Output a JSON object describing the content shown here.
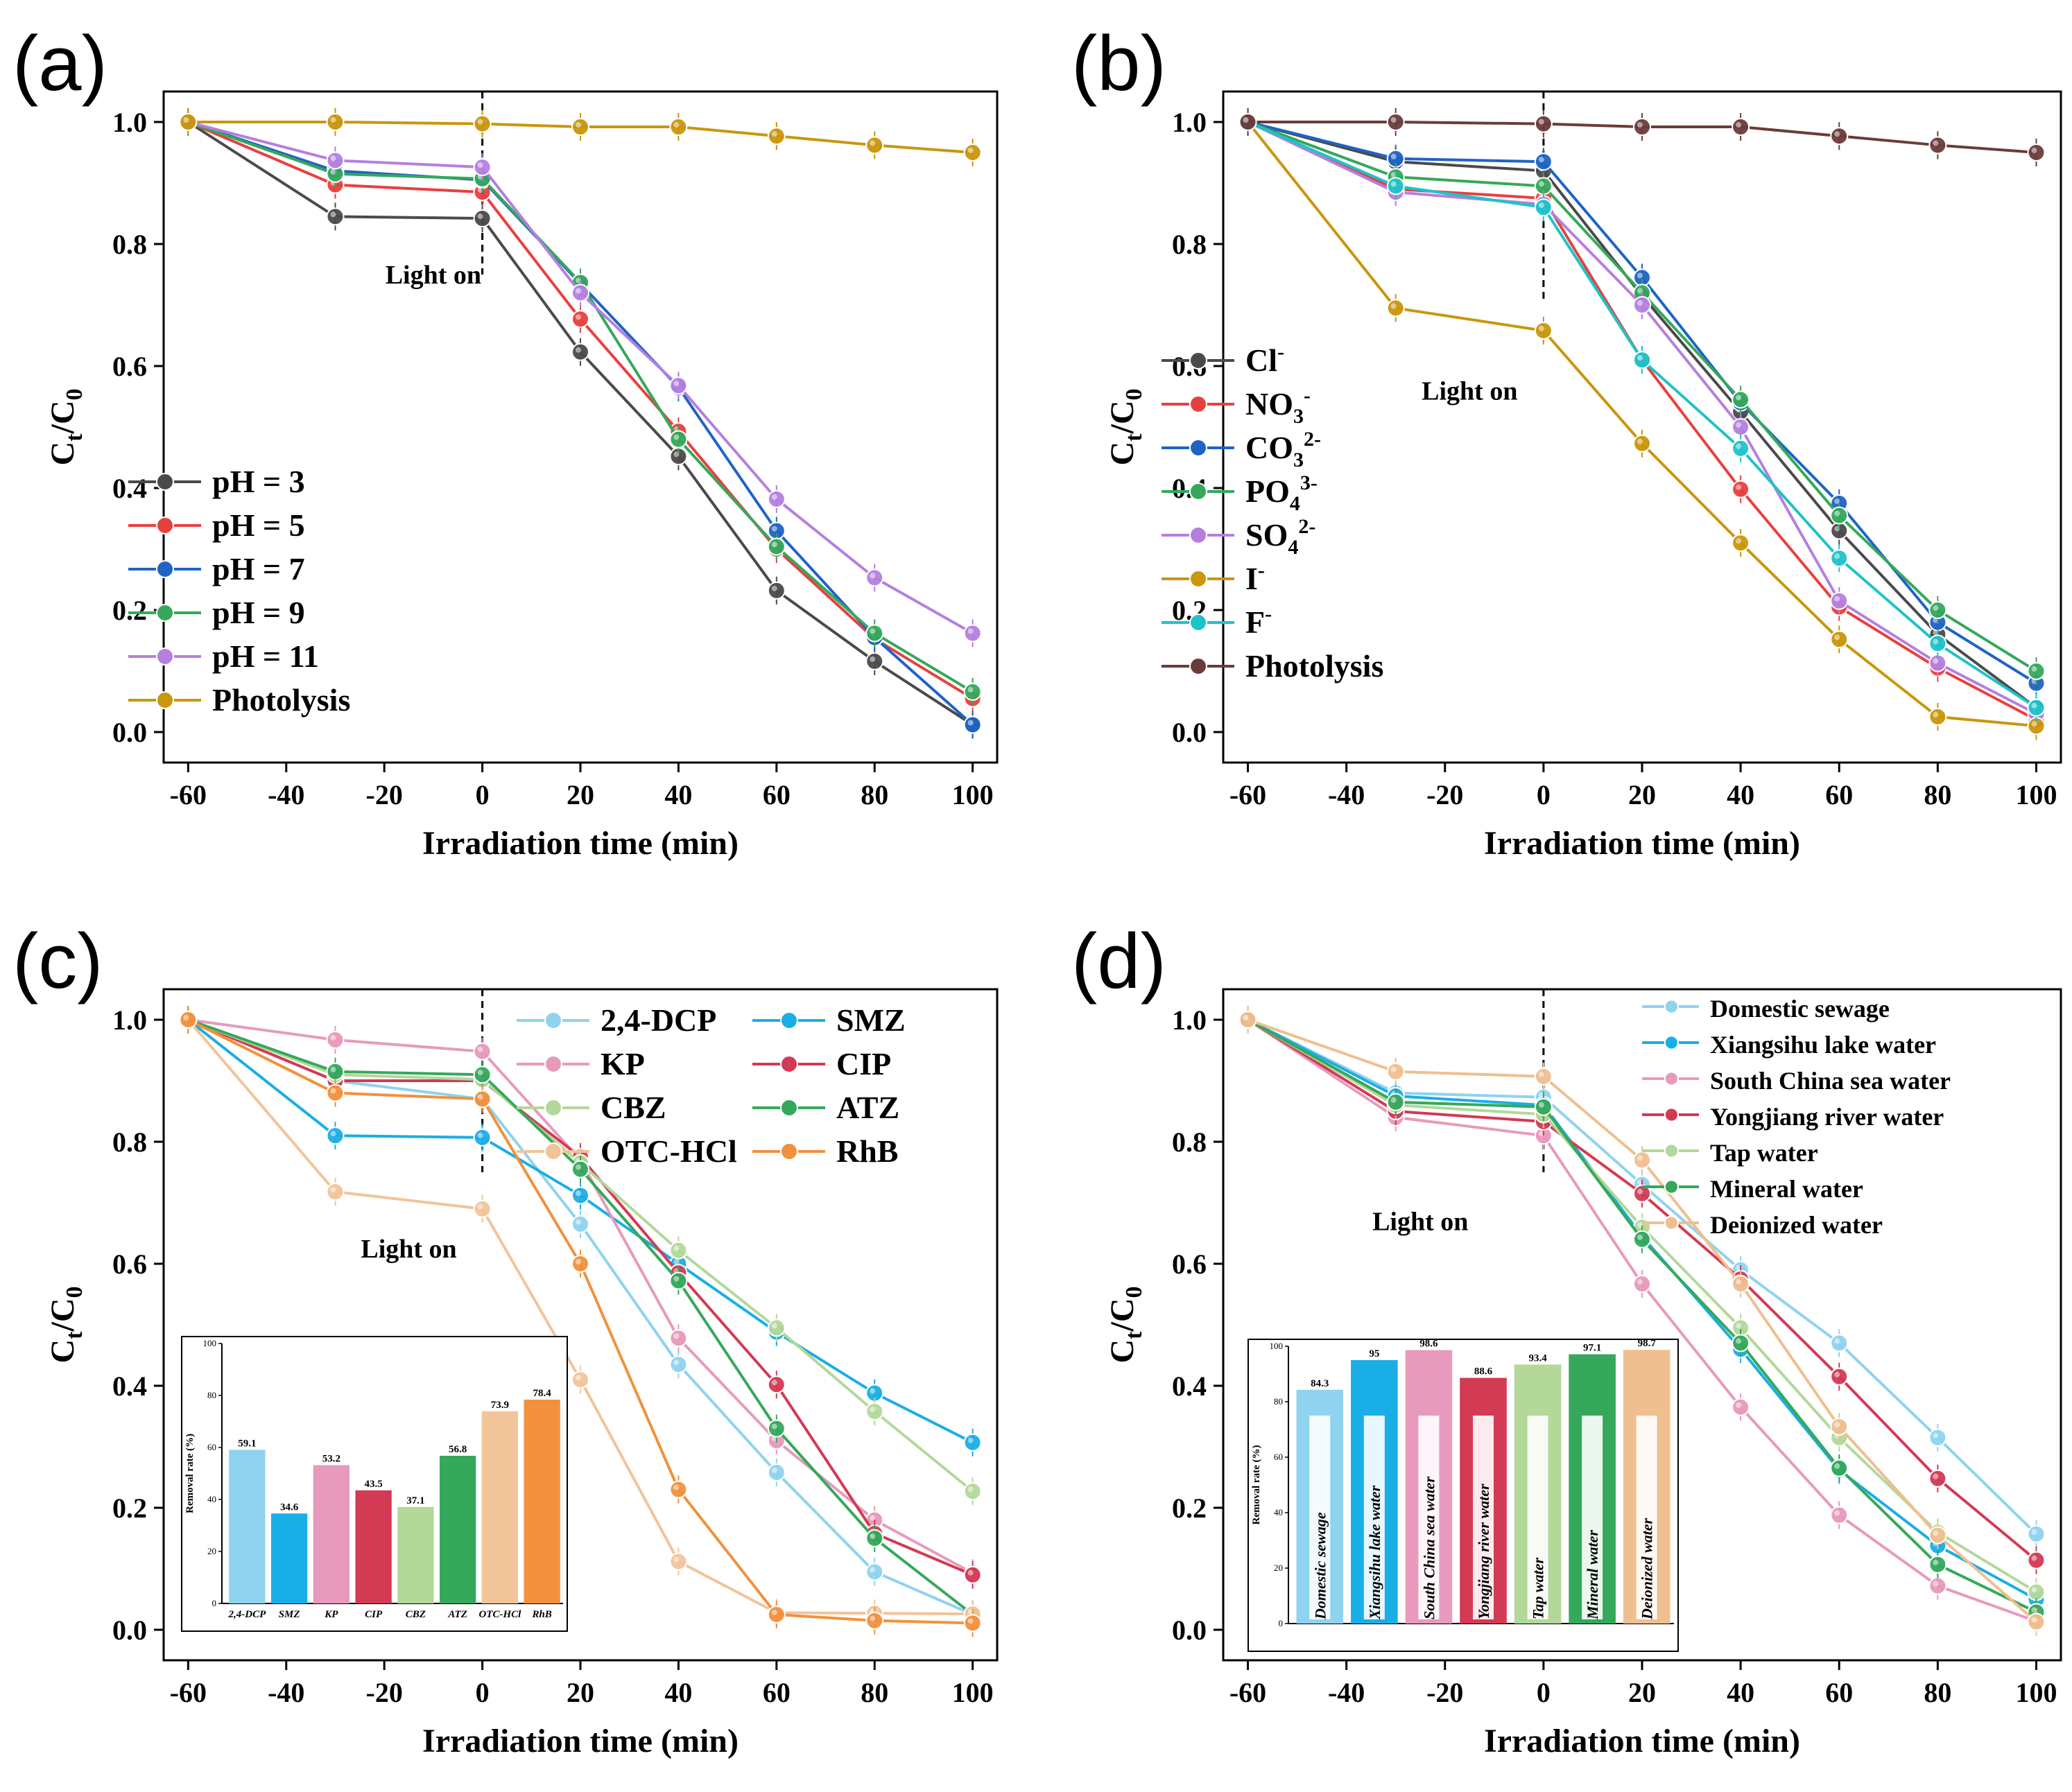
{
  "colors": {
    "dark_gray": "#4a4a4a",
    "red": "#e8403f",
    "blue": "#1f63c6",
    "green": "#35a85b",
    "purple": "#b57fe0",
    "gold": "#c9960c",
    "cyan": "#1ec3c9",
    "brown": "#6b3b3b",
    "light_blue": "#8fd3ef",
    "sky": "#1aaee6",
    "pink": "#e79abc",
    "crimson": "#d33a54",
    "light_green": "#b3d89a",
    "peach": "#f2c49a",
    "orange": "#f1913d",
    "tan": "#efbf8f"
  },
  "chart_data": [
    {
      "id": "a",
      "panel_label": "(a)",
      "type": "line",
      "xlabel": "Irradiation time (min)",
      "ylabel_main": "C",
      "ylabel_sub1": "t",
      "ylabel_sep": "/C",
      "ylabel_sub2": "0",
      "xlim": [
        -65,
        105
      ],
      "ylim": [
        -0.05,
        1.05
      ],
      "xticks": [
        -60,
        -40,
        -20,
        0,
        20,
        40,
        60,
        80,
        100
      ],
      "yticks": [
        0.0,
        0.2,
        0.4,
        0.6,
        0.8,
        1.0
      ],
      "xtick_labels": [
        "-60",
        "-40",
        "-20",
        "0",
        "20",
        "40",
        "60",
        "80",
        "100"
      ],
      "ytick_labels": [
        "0.0",
        "0.2",
        "0.4",
        "0.6",
        "0.8",
        "1.0"
      ],
      "x": [
        -60,
        -30,
        0,
        20,
        40,
        60,
        80,
        100
      ],
      "annotation": {
        "text": "Light on",
        "x": 0
      },
      "legend_position": "left-middle",
      "series": [
        {
          "name": "pH = 3",
          "color": "dark_gray",
          "values": [
            1.0,
            0.845,
            0.842,
            0.623,
            0.452,
            0.232,
            0.116,
            0.012
          ]
        },
        {
          "name": "pH = 5",
          "color": "red",
          "values": [
            1.0,
            0.897,
            0.885,
            0.677,
            0.493,
            0.3,
            0.153,
            0.055
          ]
        },
        {
          "name": "pH = 7",
          "color": "blue",
          "values": [
            1.0,
            0.92,
            0.905,
            0.735,
            0.565,
            0.33,
            0.155,
            0.012
          ]
        },
        {
          "name": "pH = 9",
          "color": "green",
          "values": [
            1.0,
            0.915,
            0.907,
            0.737,
            0.48,
            0.304,
            0.162,
            0.066
          ]
        },
        {
          "name": "pH = 11",
          "color": "purple",
          "values": [
            1.0,
            0.937,
            0.926,
            0.72,
            0.568,
            0.382,
            0.253,
            0.162
          ]
        },
        {
          "name": "Photolysis",
          "color": "gold",
          "values": [
            1.0,
            1.0,
            0.997,
            0.992,
            0.992,
            0.977,
            0.962,
            0.95
          ]
        }
      ]
    },
    {
      "id": "b",
      "panel_label": "(b)",
      "type": "line",
      "xlabel": "Irradiation time (min)",
      "ylabel_main": "C",
      "ylabel_sub1": "t",
      "ylabel_sep": "/C",
      "ylabel_sub2": "0",
      "xlim": [
        -65,
        105
      ],
      "ylim": [
        -0.05,
        1.05
      ],
      "xticks": [
        -60,
        -40,
        -20,
        0,
        20,
        40,
        60,
        80,
        100
      ],
      "yticks": [
        0.0,
        0.2,
        0.4,
        0.6,
        0.8,
        1.0
      ],
      "xtick_labels": [
        "-60",
        "-40",
        "-20",
        "0",
        "20",
        "40",
        "60",
        "80",
        "100"
      ],
      "ytick_labels": [
        "0.0",
        "0.2",
        "0.4",
        "0.6",
        "0.8",
        "1.0"
      ],
      "x": [
        -60,
        -30,
        0,
        20,
        40,
        60,
        80,
        100
      ],
      "annotation": {
        "text": "Light on",
        "x": 0
      },
      "legend_position": "left-bottom",
      "series": [
        {
          "name": "Cl",
          "sup": "-",
          "color": "dark_gray",
          "values": [
            1.0,
            0.935,
            0.92,
            0.715,
            0.525,
            0.33,
            0.16,
            0.04
          ]
        },
        {
          "name": "NO",
          "sub": "3",
          "sup": "-",
          "color": "red",
          "values": [
            1.0,
            0.89,
            0.875,
            0.61,
            0.398,
            0.205,
            0.105,
            0.02
          ]
        },
        {
          "name": "CO",
          "sub": "3",
          "sup": "2-",
          "color": "blue",
          "values": [
            1.0,
            0.94,
            0.935,
            0.745,
            0.54,
            0.375,
            0.18,
            0.08
          ]
        },
        {
          "name": "PO",
          "sub": "4",
          "sup": "3-",
          "color": "green",
          "values": [
            1.0,
            0.91,
            0.895,
            0.72,
            0.545,
            0.355,
            0.2,
            0.1
          ]
        },
        {
          "name": "SO",
          "sub": "4",
          "sup": "2-",
          "color": "purple",
          "values": [
            1.0,
            0.885,
            0.865,
            0.7,
            0.5,
            0.215,
            0.113,
            0.03
          ]
        },
        {
          "name": "I",
          "sup": "-",
          "color": "gold",
          "values": [
            1.0,
            0.695,
            0.658,
            0.473,
            0.31,
            0.152,
            0.025,
            0.01
          ]
        },
        {
          "name": "F",
          "sup": "-",
          "color": "cyan",
          "values": [
            1.0,
            0.895,
            0.86,
            0.61,
            0.465,
            0.285,
            0.145,
            0.04
          ]
        },
        {
          "name": "Photolysis",
          "color": "brown",
          "values": [
            1.0,
            1.0,
            0.997,
            0.992,
            0.992,
            0.977,
            0.962,
            0.95
          ]
        }
      ]
    },
    {
      "id": "c",
      "panel_label": "(c)",
      "type": "line",
      "xlabel": "Irradiation time (min)",
      "ylabel_main": "C",
      "ylabel_sub1": "t",
      "ylabel_sep": "/C",
      "ylabel_sub2": "0",
      "xlim": [
        -65,
        105
      ],
      "ylim": [
        -0.05,
        1.05
      ],
      "xticks": [
        -60,
        -40,
        -20,
        0,
        20,
        40,
        60,
        80,
        100
      ],
      "yticks": [
        0.0,
        0.2,
        0.4,
        0.6,
        0.8,
        1.0
      ],
      "xtick_labels": [
        "-60",
        "-40",
        "-20",
        "0",
        "20",
        "40",
        "60",
        "80",
        "100"
      ],
      "ytick_labels": [
        "0.0",
        "0.2",
        "0.4",
        "0.6",
        "0.8",
        "1.0"
      ],
      "x": [
        -60,
        -30,
        0,
        20,
        40,
        60,
        80,
        100
      ],
      "annotation": {
        "text": "Light on",
        "x": 0
      },
      "legend_position": "top-right",
      "series": [
        {
          "name": "2,4-DCP",
          "color": "light_blue",
          "values": [
            1.0,
            0.9,
            0.87,
            0.665,
            0.435,
            0.258,
            0.095,
            0.025
          ]
        },
        {
          "name": "SMZ",
          "color": "sky",
          "values": [
            1.0,
            0.81,
            0.807,
            0.712,
            0.6,
            0.488,
            0.388,
            0.307
          ]
        },
        {
          "name": "KP",
          "color": "pink",
          "values": [
            1.0,
            0.967,
            0.948,
            0.77,
            0.478,
            0.31,
            0.18,
            0.093
          ]
        },
        {
          "name": "CIP",
          "color": "crimson",
          "values": [
            1.0,
            0.9,
            0.9,
            0.775,
            0.585,
            0.402,
            0.158,
            0.09
          ]
        },
        {
          "name": "CBZ",
          "color": "light_green",
          "values": [
            1.0,
            0.91,
            0.902,
            0.765,
            0.622,
            0.495,
            0.358,
            0.227
          ]
        },
        {
          "name": "ATZ",
          "color": "green",
          "values": [
            1.0,
            0.915,
            0.91,
            0.755,
            0.572,
            0.33,
            0.15,
            0.025
          ]
        },
        {
          "name": "OTC-HCl",
          "color": "peach",
          "values": [
            1.0,
            0.718,
            0.69,
            0.41,
            0.112,
            0.028,
            0.027,
            0.026
          ]
        },
        {
          "name": "RhB",
          "color": "orange",
          "values": [
            1.0,
            0.88,
            0.87,
            0.6,
            0.23,
            0.025,
            0.015,
            0.011
          ]
        }
      ],
      "inset": {
        "type": "bar",
        "ylabel": "Removal rate (%)",
        "ylim": [
          0,
          100
        ],
        "yticks": [
          0,
          20,
          40,
          60,
          80,
          100
        ],
        "ytick_labels": [
          "0",
          "20",
          "40",
          "60",
          "80",
          "100"
        ],
        "categories": [
          "2,4-DCP",
          "SMZ",
          "KP",
          "CIP",
          "CBZ",
          "ATZ",
          "OTC-HCl",
          "RhB"
        ],
        "values": [
          59.1,
          34.6,
          53.2,
          43.5,
          37.1,
          56.8,
          73.9,
          78.4
        ],
        "value_labels": [
          "59.1",
          "34.6",
          "53.2",
          "43.5",
          "37.1",
          "56.8",
          "73.9",
          "78.4"
        ],
        "colors": [
          "light_blue",
          "sky",
          "pink",
          "crimson",
          "light_green",
          "green",
          "peach",
          "orange"
        ]
      }
    },
    {
      "id": "d",
      "panel_label": "(d)",
      "type": "line",
      "xlabel": "Irradiation time (min)",
      "ylabel_main": "C",
      "ylabel_sub1": "t",
      "ylabel_sep": "/C",
      "ylabel_sub2": "0",
      "xlim": [
        -65,
        105
      ],
      "ylim": [
        -0.05,
        1.05
      ],
      "xticks": [
        -60,
        -40,
        -20,
        0,
        20,
        40,
        60,
        80,
        100
      ],
      "yticks": [
        0.0,
        0.2,
        0.4,
        0.6,
        0.8,
        1.0
      ],
      "xtick_labels": [
        "-60",
        "-40",
        "-20",
        "0",
        "20",
        "40",
        "60",
        "80",
        "100"
      ],
      "ytick_labels": [
        "0.0",
        "0.2",
        "0.4",
        "0.6",
        "0.8",
        "1.0"
      ],
      "x": [
        -60,
        -30,
        0,
        20,
        40,
        60,
        80,
        100
      ],
      "annotation": {
        "text": "Light on",
        "x": 0
      },
      "legend_position": "top-right",
      "series": [
        {
          "name": "Domestic sewage",
          "color": "light_blue",
          "values": [
            1.0,
            0.88,
            0.873,
            0.73,
            0.59,
            0.47,
            0.315,
            0.157
          ]
        },
        {
          "name": "Xiangsihu lake water",
          "color": "sky",
          "values": [
            1.0,
            0.875,
            0.86,
            0.645,
            0.46,
            0.262,
            0.138,
            0.05
          ]
        },
        {
          "name": "South China sea water",
          "color": "pink",
          "values": [
            1.0,
            0.84,
            0.81,
            0.567,
            0.365,
            0.188,
            0.072,
            0.014
          ]
        },
        {
          "name": "Yongjiang river water",
          "color": "crimson",
          "values": [
            1.0,
            0.85,
            0.833,
            0.715,
            0.575,
            0.415,
            0.248,
            0.114
          ]
        },
        {
          "name": "Tap water",
          "color": "light_green",
          "values": [
            1.0,
            0.86,
            0.845,
            0.66,
            0.495,
            0.315,
            0.16,
            0.062
          ]
        },
        {
          "name": "Mineral water",
          "color": "green",
          "values": [
            1.0,
            0.865,
            0.857,
            0.64,
            0.47,
            0.265,
            0.107,
            0.029
          ]
        },
        {
          "name": "Deionized water",
          "color": "tan",
          "values": [
            1.0,
            0.915,
            0.907,
            0.77,
            0.567,
            0.333,
            0.155,
            0.013
          ]
        }
      ],
      "inset": {
        "type": "bar",
        "ylabel": "Removal rate (%)",
        "ylim": [
          0,
          100
        ],
        "yticks": [
          0,
          20,
          40,
          60,
          80,
          100
        ],
        "ytick_labels": [
          "0",
          "20",
          "40",
          "60",
          "80",
          "100"
        ],
        "categories": [
          "Domestic sewage",
          "Xiangsihu lake water",
          "South China sea water",
          "Yongjiang river water",
          "Tap water",
          "Mineral water",
          "Deionized water"
        ],
        "values": [
          84.3,
          95,
          98.6,
          88.6,
          93.4,
          97.1,
          98.7
        ],
        "value_labels": [
          "84.3",
          "95",
          "98.6",
          "88.6",
          "93.4",
          "97.1",
          "98.7"
        ],
        "colors": [
          "light_blue",
          "sky",
          "pink",
          "crimson",
          "light_green",
          "green",
          "tan"
        ]
      }
    }
  ]
}
